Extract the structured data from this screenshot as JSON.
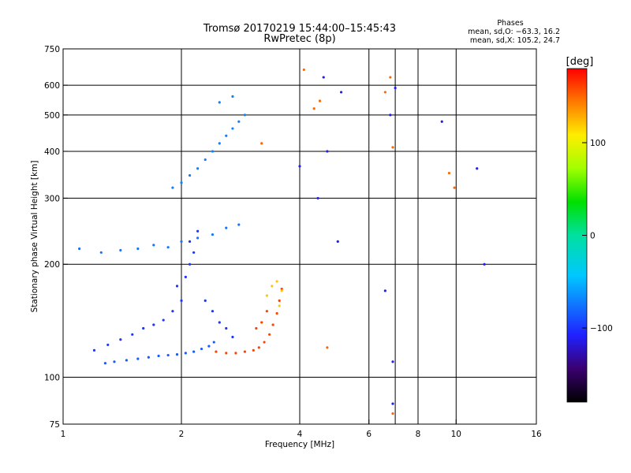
{
  "chart_data": {
    "type": "scatter",
    "title": "Tromsø 20170219 15:44:00–15:45:43",
    "subtitle": "RwPretec (8p)",
    "legend_info": {
      "heading": "Phases",
      "line1": "mean, sd,O: −63.3, 16.2",
      "line2": "mean, sd,X: 105.2, 24.7"
    },
    "xlabel": "Frequency [MHz]",
    "ylabel": "Stationary phase Virtual Height [km]",
    "x_scale": "log",
    "y_scale": "log",
    "xlim": [
      1,
      16
    ],
    "ylim": [
      75,
      750
    ],
    "xticks": [
      1,
      2,
      4,
      6,
      8,
      10,
      16
    ],
    "xtick_labels": [
      "1",
      "2",
      "4",
      "6",
      "8",
      "10",
      "16"
    ],
    "yticks": [
      75,
      100,
      200,
      300,
      400,
      500,
      600,
      750
    ],
    "ytick_labels": [
      "75",
      "100",
      "200",
      "300",
      "400",
      "500",
      "600",
      "750"
    ],
    "xgrid": [
      2,
      4,
      6,
      7,
      8,
      10
    ],
    "ygrid": [
      100,
      200,
      300,
      400,
      500,
      600
    ],
    "colorbar": {
      "label": "[deg]",
      "range": [
        -180,
        180
      ],
      "ticks": [
        100,
        0,
        -100
      ],
      "tick_labels": [
        "100",
        "0",
        "−100"
      ]
    },
    "series": [
      {
        "trace": "O-low",
        "phase": -85,
        "points": [
          [
            1.28,
            109
          ],
          [
            1.35,
            110
          ],
          [
            1.45,
            111
          ],
          [
            1.55,
            112
          ],
          [
            1.65,
            113
          ],
          [
            1.75,
            114
          ],
          [
            1.85,
            114.5
          ],
          [
            1.95,
            115
          ],
          [
            2.05,
            116
          ],
          [
            2.15,
            117
          ],
          [
            2.25,
            119
          ],
          [
            2.35,
            121
          ],
          [
            2.42,
            124
          ]
        ]
      },
      {
        "trace": "O-spread",
        "phase": -100,
        "points": [
          [
            1.2,
            118
          ],
          [
            1.3,
            122
          ],
          [
            1.4,
            126
          ],
          [
            1.5,
            130
          ],
          [
            1.6,
            135
          ],
          [
            1.7,
            138
          ],
          [
            1.8,
            142
          ],
          [
            1.9,
            150
          ],
          [
            2.0,
            160
          ],
          [
            1.95,
            175
          ],
          [
            2.05,
            185
          ],
          [
            2.1,
            200
          ],
          [
            2.15,
            215
          ],
          [
            2.1,
            230
          ],
          [
            2.2,
            245
          ],
          [
            2.3,
            160
          ],
          [
            2.4,
            150
          ],
          [
            2.5,
            140
          ],
          [
            2.6,
            135
          ],
          [
            2.7,
            128
          ]
        ]
      },
      {
        "trace": "O-F1",
        "phase": -75,
        "points": [
          [
            1.1,
            220
          ],
          [
            1.25,
            215
          ],
          [
            1.4,
            218
          ],
          [
            1.55,
            220
          ],
          [
            1.7,
            225
          ],
          [
            1.85,
            222
          ],
          [
            2.0,
            230
          ],
          [
            2.2,
            235
          ],
          [
            2.4,
            240
          ],
          [
            2.6,
            250
          ],
          [
            2.8,
            255
          ]
        ]
      },
      {
        "trace": "O-F2",
        "phase": -70,
        "points": [
          [
            1.9,
            320
          ],
          [
            2.0,
            330
          ],
          [
            2.1,
            345
          ],
          [
            2.2,
            360
          ],
          [
            2.3,
            380
          ],
          [
            2.4,
            400
          ],
          [
            2.5,
            420
          ],
          [
            2.6,
            440
          ],
          [
            2.7,
            460
          ],
          [
            2.8,
            480
          ],
          [
            2.9,
            500
          ],
          [
            2.5,
            540
          ],
          [
            2.7,
            560
          ]
        ]
      },
      {
        "trace": "X",
        "phase": 160,
        "points": [
          [
            2.45,
            117
          ],
          [
            2.6,
            116
          ],
          [
            2.75,
            116
          ],
          [
            2.9,
            117
          ],
          [
            3.05,
            118
          ],
          [
            3.15,
            120
          ],
          [
            3.25,
            124
          ],
          [
            3.35,
            130
          ],
          [
            3.42,
            138
          ],
          [
            3.5,
            148
          ],
          [
            3.55,
            160
          ],
          [
            3.6,
            172
          ],
          [
            3.3,
            150
          ],
          [
            3.2,
            140
          ],
          [
            3.1,
            135
          ]
        ]
      },
      {
        "trace": "X-upper",
        "phase": 120,
        "points": [
          [
            3.3,
            165
          ],
          [
            3.4,
            175
          ],
          [
            3.5,
            180
          ],
          [
            3.6,
            170
          ],
          [
            3.55,
            155
          ]
        ]
      },
      {
        "trace": "scatter",
        "phase": -110,
        "points": [
          [
            4.6,
            630
          ],
          [
            5.1,
            575
          ],
          [
            4.7,
            400
          ],
          [
            5.0,
            230
          ],
          [
            6.8,
            500
          ],
          [
            7.0,
            590
          ],
          [
            6.9,
            85
          ],
          [
            4.0,
            365
          ],
          [
            9.2,
            480
          ],
          [
            11.3,
            360
          ],
          [
            11.8,
            200
          ],
          [
            6.6,
            170
          ],
          [
            6.9,
            110
          ],
          [
            4.45,
            300
          ]
        ]
      },
      {
        "trace": "scatter",
        "phase": 150,
        "points": [
          [
            4.35,
            520
          ],
          [
            4.5,
            545
          ],
          [
            6.8,
            630
          ],
          [
            6.9,
            410
          ],
          [
            4.1,
            660
          ],
          [
            3.2,
            420
          ],
          [
            6.6,
            575
          ],
          [
            4.7,
            120
          ],
          [
            6.9,
            80
          ],
          [
            9.6,
            350
          ],
          [
            9.9,
            320
          ]
        ]
      }
    ]
  }
}
